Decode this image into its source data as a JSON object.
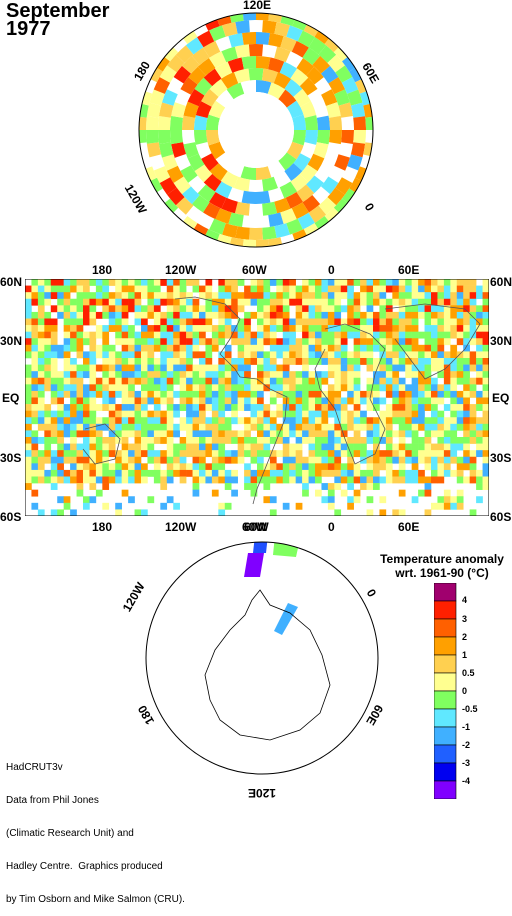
{
  "title": {
    "month": "September",
    "year": "1977"
  },
  "north_polar": {
    "labels": {
      "top": "120E",
      "upper_right": "60E",
      "right": "0",
      "lower_left": "120W",
      "upper_left": "180"
    }
  },
  "map": {
    "top_labels": [
      "180",
      "120W",
      "60W",
      "0",
      "60E"
    ],
    "bottom_labels": [
      "180",
      "120W",
      "60W",
      "0",
      "60E"
    ],
    "left_labels": [
      "60N",
      "30N",
      "EQ",
      "30S",
      "60S"
    ],
    "right_labels": [
      "60N",
      "30N",
      "EQ",
      "30S",
      "60S"
    ]
  },
  "south_polar": {
    "labels": {
      "top": "60W",
      "upper_left": "120W",
      "upper_right": "0",
      "lower_left": "180",
      "lower_right": "60E",
      "bottom": "120E"
    }
  },
  "legend": {
    "title_line1": "Temperature anomaly",
    "title_line2": "wrt. 1961-90  (°C)",
    "values": [
      "4",
      "3",
      "2",
      "1",
      "0.5",
      "0",
      "-0.5",
      "-1",
      "-2",
      "-3",
      "-4"
    ],
    "colors": [
      "#a0006e",
      "#ff2000",
      "#ff6000",
      "#ffa000",
      "#ffd050",
      "#ffff90",
      "#80ff60",
      "#60e8ff",
      "#40b0ff",
      "#2060ff",
      "#0000f0",
      "#8000ff"
    ]
  },
  "credit": {
    "line1": "HadCRUT3v",
    "line2": "Data from Phil Jones",
    "line3": "(Climatic Research Unit) and",
    "line4": "Hadley Centre.  Graphics produced",
    "line5": "by Tim Osborn and Mike Salmon (CRU)."
  }
}
